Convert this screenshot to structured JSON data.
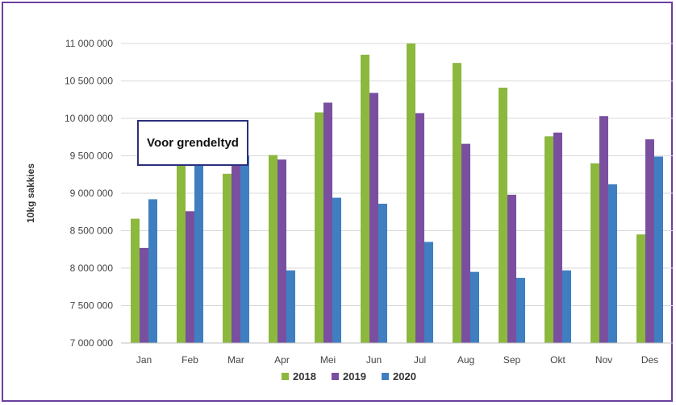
{
  "chart_data": {
    "type": "bar",
    "ylabel": "10kg sakkies",
    "ylim": [
      7000000,
      11000000
    ],
    "yticks": [
      7000000,
      7500000,
      8000000,
      8500000,
      9000000,
      9500000,
      10000000,
      10500000,
      11000000
    ],
    "ytick_labels": [
      "7 000 000",
      "7 500 000",
      "8 000 000",
      "8 500 000",
      "9 000 000",
      "9 500 000",
      "10 000 000",
      "10 500 000",
      "11 000 000"
    ],
    "categories": [
      "Jan",
      "Feb",
      "Mar",
      "Apr",
      "Mei",
      "Jun",
      "Jul",
      "Aug",
      "Sep",
      "Okt",
      "Nov",
      "Des"
    ],
    "series": [
      {
        "name": "2018",
        "color": "#8cb83e",
        "values": [
          8660000,
          9440000,
          9260000,
          9510000,
          10080000,
          10850000,
          11000000,
          10740000,
          10410000,
          9760000,
          9400000,
          8450000
        ]
      },
      {
        "name": "2019",
        "color": "#7a4fa0",
        "values": [
          8270000,
          8760000,
          9470000,
          9450000,
          10210000,
          10340000,
          10070000,
          9660000,
          8980000,
          9810000,
          10030000,
          9720000
        ]
      },
      {
        "name": "2020",
        "color": "#3f7fc1",
        "values": [
          8920000,
          9440000,
          9500000,
          7970000,
          8940000,
          8860000,
          8350000,
          7950000,
          7870000,
          7970000,
          9120000,
          9490000
        ]
      }
    ],
    "grid": true,
    "legend": "bottom",
    "annotation": "Voor grendeltyd"
  }
}
